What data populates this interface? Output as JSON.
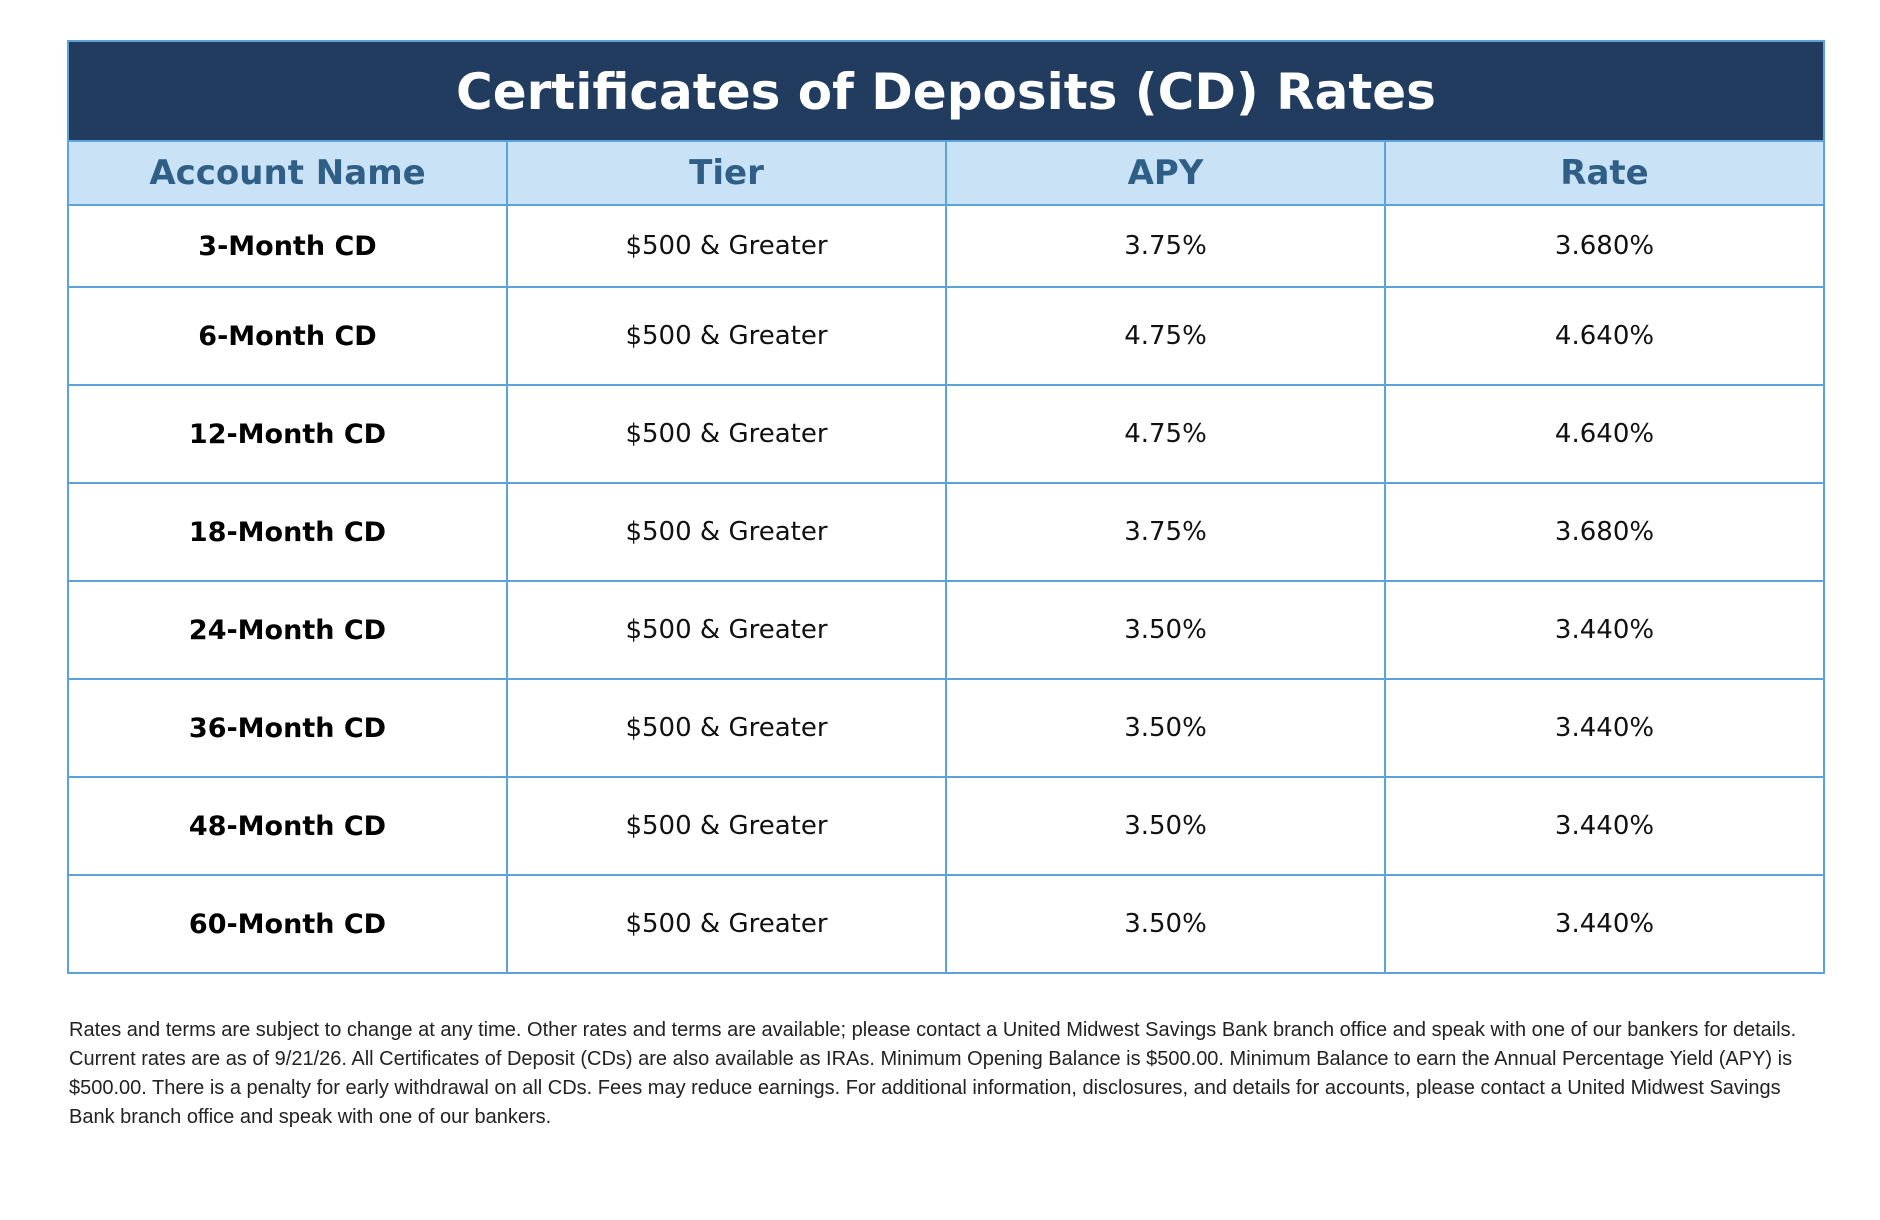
{
  "title": "Certificates of Deposits (CD) Rates",
  "columns": [
    "Account Name",
    "Tier",
    "APY",
    "Rate"
  ],
  "rows": [
    {
      "account": "3-Month CD",
      "tier": "$500 & Greater",
      "apy": "3.75%",
      "rate": "3.680%"
    },
    {
      "account": "6-Month CD",
      "tier": "$500 & Greater",
      "apy": "4.75%",
      "rate": "4.640%"
    },
    {
      "account": "12-Month CD",
      "tier": "$500 & Greater",
      "apy": "4.75%",
      "rate": "4.640%"
    },
    {
      "account": "18-Month CD",
      "tier": "$500 & Greater",
      "apy": "3.75%",
      "rate": "3.680%"
    },
    {
      "account": "24-Month CD",
      "tier": "$500 & Greater",
      "apy": "3.50%",
      "rate": "3.440%"
    },
    {
      "account": "36-Month CD",
      "tier": "$500 & Greater",
      "apy": "3.50%",
      "rate": "3.440%"
    },
    {
      "account": "48-Month CD",
      "tier": "$500 & Greater",
      "apy": "3.50%",
      "rate": "3.440%"
    },
    {
      "account": "60-Month CD",
      "tier": "$500 & Greater",
      "apy": "3.50%",
      "rate": "3.440%"
    }
  ],
  "disclaimer": "Rates and terms are subject to change at any time. Other rates and terms are available; please contact a United Midwest Savings Bank branch office and speak with one of our bankers for details. Current rates are as of 9/21/26. All Certificates of Deposit (CDs) are also available as IRAs. Minimum Opening Balance is $500.00. Minimum Balance to earn the Annual Percentage Yield (APY) is $500.00. There is a penalty for early withdrawal on all CDs. Fees may reduce earnings. For additional information, disclosures, and details for accounts, please contact a United Midwest Savings Bank branch office and speak with one of our bankers.",
  "colors": {
    "title_background": "#213c5f",
    "header_background": "#c9e2f5",
    "header_text": "#2f5f86",
    "border": "#5ba3d8"
  }
}
